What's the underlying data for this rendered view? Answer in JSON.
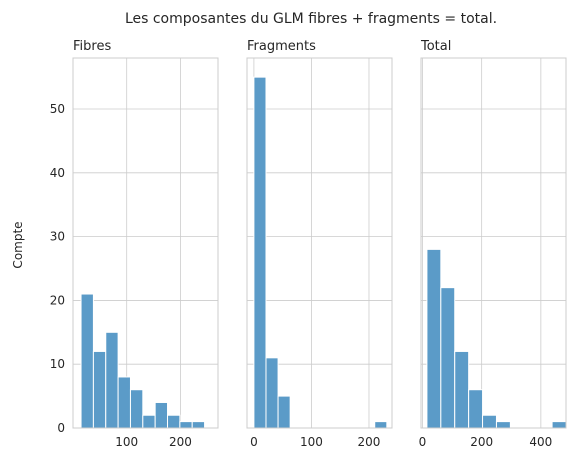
{
  "chart_data": {
    "type": "bar",
    "title": "Les composantes du GLM fibres + fragments = total.",
    "ylabel": "Compte",
    "ylim": [
      0,
      58
    ],
    "yticks": [
      0,
      10,
      20,
      30,
      40,
      50
    ],
    "grid": true,
    "bar_color": "#5b9bc8",
    "panels": [
      {
        "title": "Fibres",
        "xlim": [
          0,
          270
        ],
        "xticks": [
          100,
          200
        ],
        "bins": [
          {
            "x0": 15,
            "x1": 38,
            "count": 21
          },
          {
            "x0": 38,
            "x1": 61,
            "count": 12
          },
          {
            "x0": 61,
            "x1": 84,
            "count": 15
          },
          {
            "x0": 84,
            "x1": 107,
            "count": 8
          },
          {
            "x0": 107,
            "x1": 130,
            "count": 6
          },
          {
            "x0": 130,
            "x1": 153,
            "count": 2
          },
          {
            "x0": 153,
            "x1": 176,
            "count": 4
          },
          {
            "x0": 176,
            "x1": 199,
            "count": 2
          },
          {
            "x0": 199,
            "x1": 222,
            "count": 1
          },
          {
            "x0": 222,
            "x1": 245,
            "count": 1
          }
        ]
      },
      {
        "title": "Fragments",
        "xlim": [
          -12,
          240
        ],
        "xticks": [
          0,
          100,
          200
        ],
        "bins": [
          {
            "x0": 0,
            "x1": 21,
            "count": 55
          },
          {
            "x0": 21,
            "x1": 42,
            "count": 11
          },
          {
            "x0": 42,
            "x1": 63,
            "count": 5
          },
          {
            "x0": 63,
            "x1": 84,
            "count": 0
          },
          {
            "x0": 84,
            "x1": 105,
            "count": 0
          },
          {
            "x0": 105,
            "x1": 126,
            "count": 0
          },
          {
            "x0": 126,
            "x1": 147,
            "count": 0
          },
          {
            "x0": 147,
            "x1": 168,
            "count": 0
          },
          {
            "x0": 168,
            "x1": 189,
            "count": 0
          },
          {
            "x0": 189,
            "x1": 210,
            "count": 0
          },
          {
            "x0": 210,
            "x1": 231,
            "count": 1
          }
        ]
      },
      {
        "title": "Total",
        "xlim": [
          -5,
          485
        ],
        "xticks": [
          0,
          200,
          400
        ],
        "bins": [
          {
            "x0": 15,
            "x1": 62,
            "count": 28
          },
          {
            "x0": 62,
            "x1": 109,
            "count": 22
          },
          {
            "x0": 109,
            "x1": 156,
            "count": 12
          },
          {
            "x0": 156,
            "x1": 203,
            "count": 6
          },
          {
            "x0": 203,
            "x1": 250,
            "count": 2
          },
          {
            "x0": 250,
            "x1": 297,
            "count": 1
          },
          {
            "x0": 297,
            "x1": 344,
            "count": 0
          },
          {
            "x0": 344,
            "x1": 391,
            "count": 0
          },
          {
            "x0": 391,
            "x1": 438,
            "count": 0
          },
          {
            "x0": 438,
            "x1": 485,
            "count": 1
          }
        ]
      }
    ]
  }
}
